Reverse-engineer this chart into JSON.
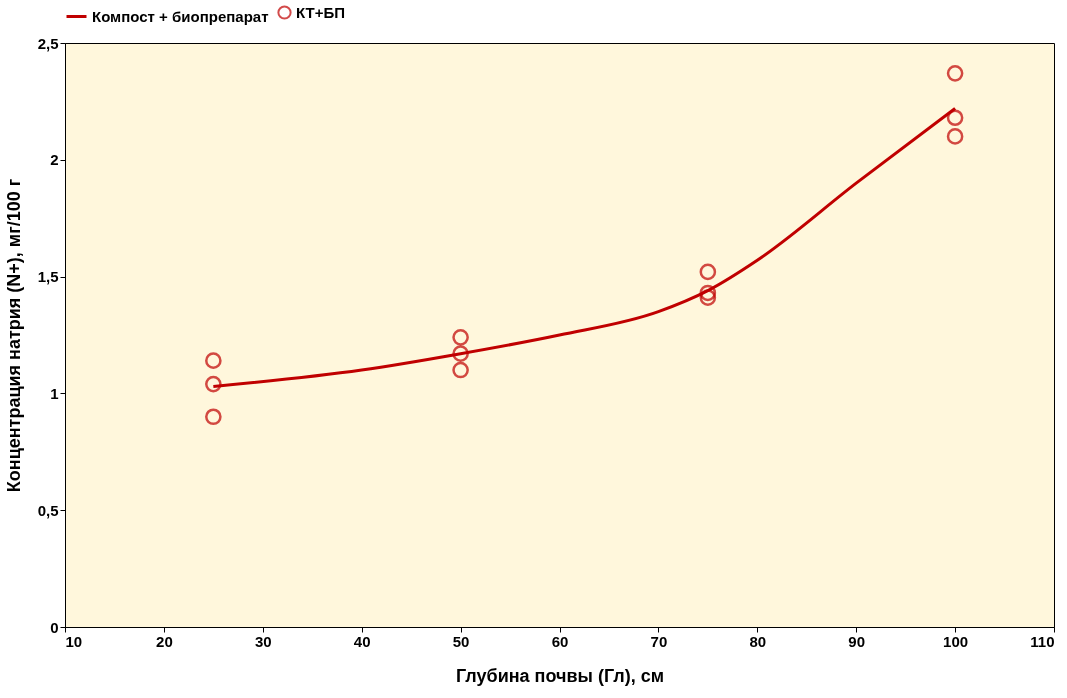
{
  "chart_data": {
    "type": "scatter",
    "xlabel": "Глубина почвы (Гл), см",
    "ylabel": "Концентрация натрия (N+), мг/100 г",
    "series": [
      {
        "name": "Компост + биопрепарат",
        "type": "line",
        "color": "#c00000",
        "marker": "none",
        "line_style": "solid",
        "x": [
          25,
          40,
          50,
          60,
          70,
          75,
          80,
          90,
          100
        ],
        "values": [
          1.03,
          1.1,
          1.17,
          1.25,
          1.35,
          1.44,
          1.57,
          1.9,
          2.22
        ]
      },
      {
        "name": "КТ+БП",
        "color": "#c00000",
        "marker": "circle",
        "x": [
          25,
          25,
          25,
          50,
          50,
          50,
          75,
          75,
          75,
          100,
          100,
          100
        ],
        "values": [
          1.14,
          1.04,
          0.9,
          1.24,
          1.17,
          1.1,
          1.52,
          1.43,
          1.41,
          2.37,
          2.18,
          2.1
        ]
      }
    ],
    "xlim": [
      10,
      110
    ],
    "xticks": [
      10,
      20,
      30,
      40,
      50,
      60,
      70,
      80,
      90,
      100,
      110
    ],
    "ylim": [
      0,
      2.5
    ],
    "yticks": [
      0,
      {
        "value": 0.5,
        "label": "0,5"
      },
      1,
      {
        "value": 1.5,
        "label": "1,5"
      },
      2,
      {
        "value": 2.5,
        "label": "2,5"
      }
    ],
    "grid": false,
    "legend": "top"
  }
}
